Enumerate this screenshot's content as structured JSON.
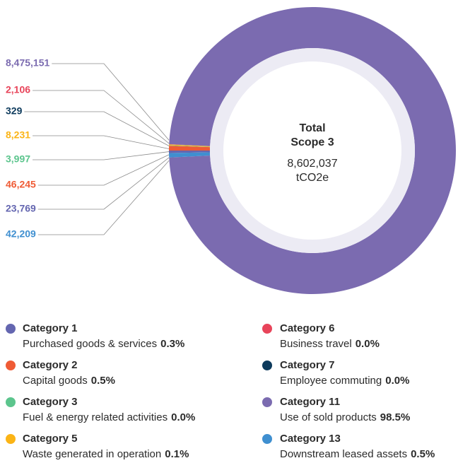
{
  "chart_data": {
    "type": "pie",
    "donut": true,
    "center_title": [
      "Total",
      "Scope 3"
    ],
    "total": {
      "value": 8602037,
      "label": "8,602,037"
    },
    "unit": "tCO2e",
    "categories": [
      "Category 1",
      "Category 2",
      "Category 3",
      "Category 5",
      "Category 6",
      "Category 7",
      "Category 11",
      "Category 13"
    ],
    "descriptions": [
      "Purchased goods & services",
      "Capital goods",
      "Fuel & energy related activities",
      "Waste generated in operation",
      "Business travel",
      "Employee commuting",
      "Use of sold products",
      "Downstream leased assets"
    ],
    "values": [
      23769,
      46245,
      3997,
      8231,
      2106,
      329,
      8475151,
      42209
    ],
    "value_labels": [
      "23,769",
      "46,245",
      "3,997",
      "8,231",
      "2,106",
      "329",
      "8,475,151",
      "42,209"
    ],
    "shares": [
      0.3,
      0.5,
      0.0,
      0.1,
      0.0,
      0.0,
      98.5,
      0.5
    ],
    "share_labels": [
      "0.3%",
      "0.5%",
      "0.0%",
      "0.1%",
      "0.0%",
      "0.0%",
      "98.5%",
      "0.5%"
    ],
    "colors": [
      "#6466b0",
      "#ef5b35",
      "#5cc58d",
      "#fbb416",
      "#e8445a",
      "#0d3a5c",
      "#7b6bb0",
      "#3f8fd0"
    ]
  }
}
